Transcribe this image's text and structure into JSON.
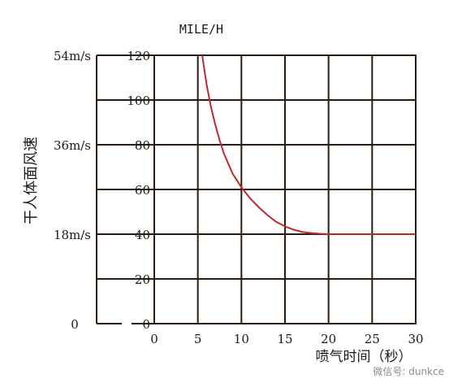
{
  "chart_data": {
    "type": "line",
    "title": "MILE/H",
    "xlabel": "喷气时间（秒）",
    "ylabel": "干人体面风速",
    "xlim": [
      0,
      30
    ],
    "ylim": [
      0,
      120
    ],
    "x_ticks": [
      "0",
      "5",
      "10",
      "15",
      "20",
      "25",
      "30"
    ],
    "x_tick_values": [
      0,
      5,
      10,
      15,
      20,
      25,
      30
    ],
    "y_ticks": [
      "0",
      "20",
      "40",
      "60",
      "80",
      "100",
      "120"
    ],
    "y_tick_values": [
      0,
      20,
      40,
      60,
      80,
      100,
      120
    ],
    "secondary_y_ticks": [
      "0",
      "18m/s",
      "36m/s",
      "54m/s"
    ],
    "secondary_y_values": [
      0,
      40,
      80,
      120
    ],
    "grid": true,
    "colors": {
      "line": "#c0282d",
      "frame": "#2a1a10"
    },
    "series": [
      {
        "x": [
          5.5,
          6,
          6.5,
          7,
          7.5,
          8,
          9,
          10,
          11,
          12,
          13,
          14,
          15,
          16,
          17,
          18,
          19,
          20,
          21,
          25,
          30
        ],
        "y": [
          120,
          107,
          97,
          89,
          82,
          76,
          67,
          61,
          56,
          52,
          48.5,
          45.5,
          43.5,
          42,
          41,
          40.5,
          40.2,
          40,
          40,
          40,
          40
        ]
      }
    ]
  },
  "watermark": "微信号: dunkce"
}
